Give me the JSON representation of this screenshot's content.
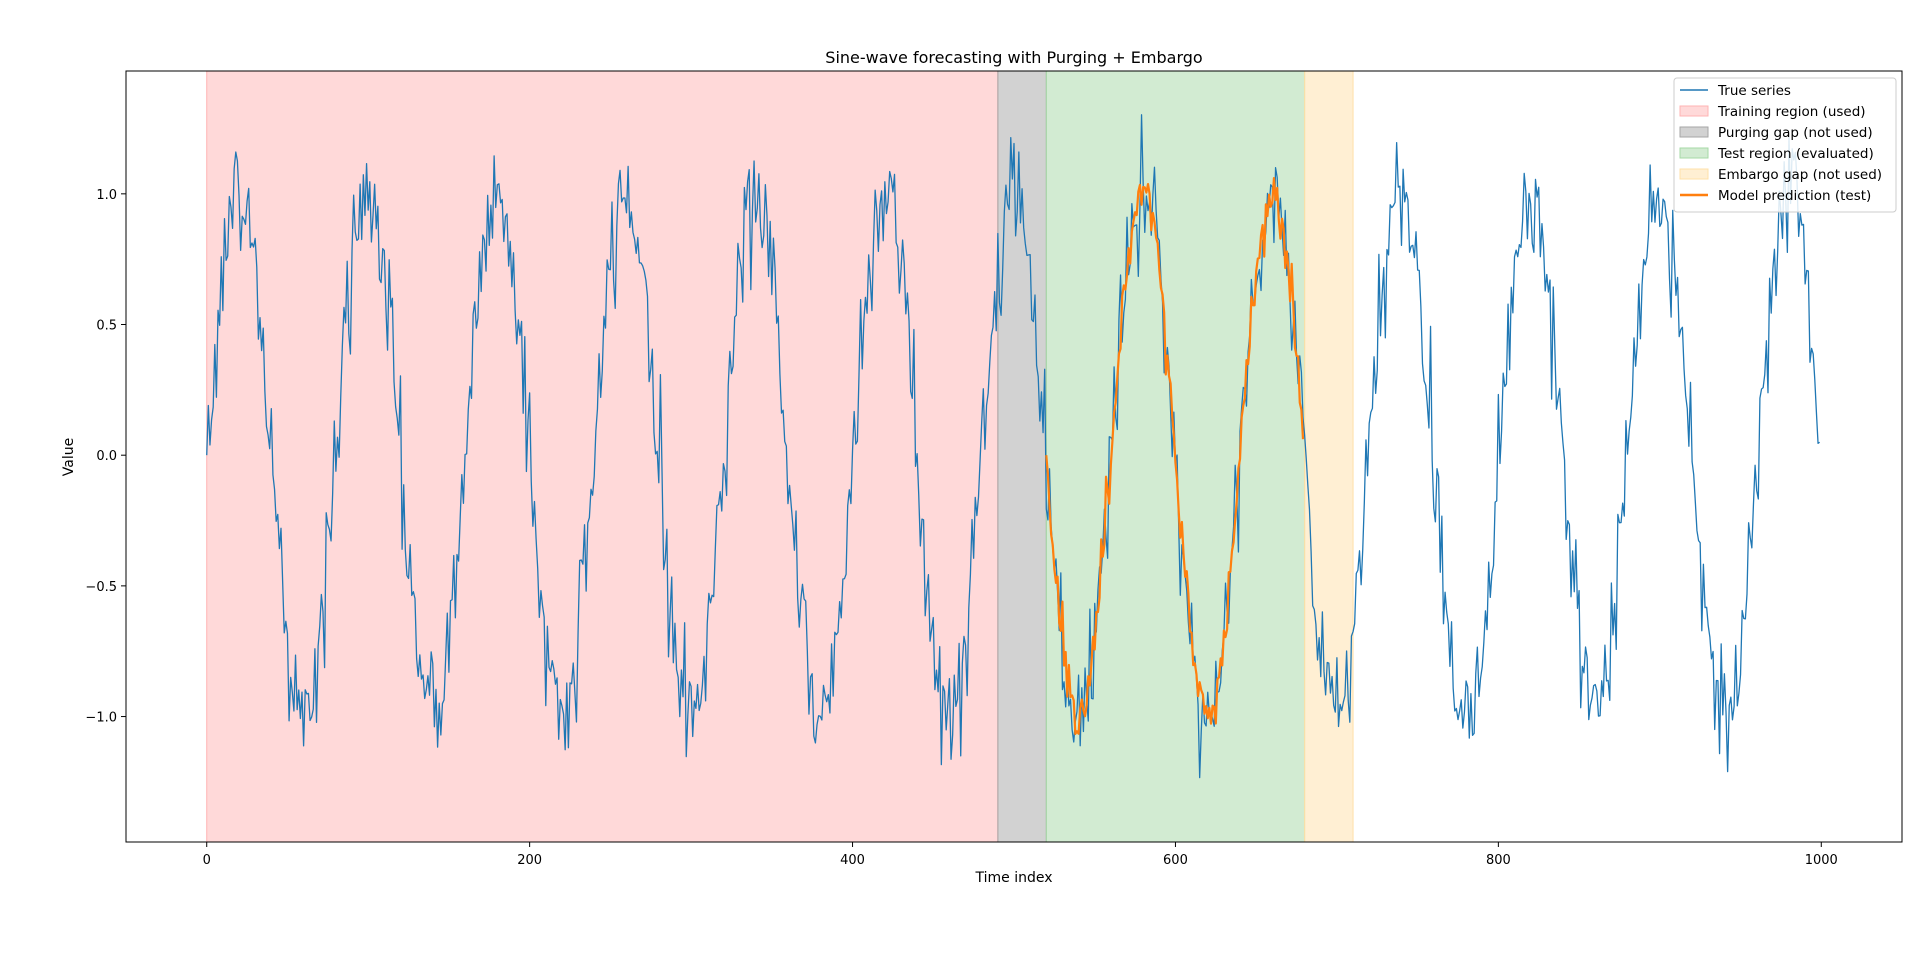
{
  "chart_data": {
    "type": "line",
    "title": "Sine-wave forecasting with Purging + Embargo",
    "xlabel": "Time index",
    "ylabel": "Value",
    "xlim": [
      -50,
      1050
    ],
    "ylim": [
      -1.48,
      1.47
    ],
    "x_ticks": [
      0,
      200,
      400,
      600,
      800,
      1000
    ],
    "x_tick_labels": [
      "0",
      "200",
      "400",
      "600",
      "800",
      "1000"
    ],
    "y_ticks": [
      -1.0,
      -0.5,
      0.0,
      0.5,
      1.0
    ],
    "y_tick_labels": [
      "−1.0",
      "−0.5",
      "0.0",
      "0.5",
      "1.0"
    ],
    "grid": false,
    "legend_position": "top-right",
    "regions": [
      {
        "name": "Training region (used)",
        "x_start": 0,
        "x_end": 490,
        "color": "#ffb3b3"
      },
      {
        "name": "Purging gap (not used)",
        "x_start": 490,
        "x_end": 520,
        "color": "#a6a6a6"
      },
      {
        "name": "Test region (evaluated)",
        "x_start": 520,
        "x_end": 680,
        "color": "#a6d8a6"
      },
      {
        "name": "Embargo gap (not used)",
        "x_start": 680,
        "x_end": 710,
        "color": "#ffe0a8"
      }
    ],
    "series": [
      {
        "name": "True series",
        "color": "#1f77b4",
        "x_start": 0,
        "x_end": 999,
        "period": 80,
        "amplitude": 1.0,
        "noise_std": 0.12,
        "first_value": 0.0,
        "peak_value": 1.32,
        "trough_value": -1.33,
        "last_value": -0.04
      },
      {
        "name": "Model prediction (test)",
        "color": "#ff7f0e",
        "x_start": 520,
        "x_end": 679,
        "period": 80,
        "amplitude": 1.0,
        "noise_std": 0.05,
        "peak_value": 1.1,
        "trough_value": -1.15
      }
    ],
    "legend": [
      {
        "label": "True series",
        "kind": "line",
        "color": "#1f77b4"
      },
      {
        "label": "Training region (used)",
        "kind": "patch",
        "color": "#ffb3b3"
      },
      {
        "label": "Purging gap (not used)",
        "kind": "patch",
        "color": "#a6a6a6"
      },
      {
        "label": "Test region (evaluated)",
        "kind": "patch",
        "color": "#a6d8a6"
      },
      {
        "label": "Embargo gap (not used)",
        "kind": "patch",
        "color": "#ffe0a8"
      },
      {
        "label": "Model prediction (test)",
        "kind": "line",
        "color": "#ff7f0e"
      }
    ]
  }
}
